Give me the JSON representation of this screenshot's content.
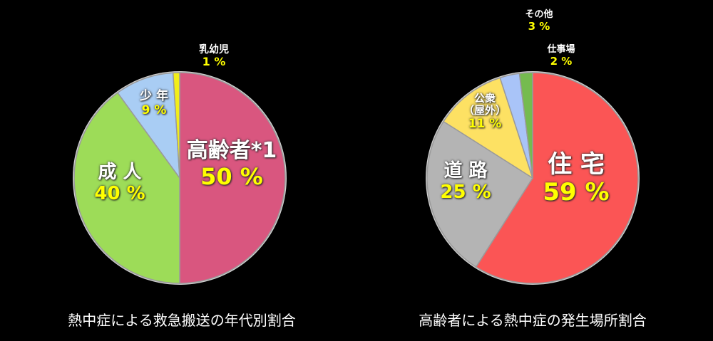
{
  "chart_data": [
    {
      "type": "pie",
      "title": "熱中症による救急搬送の年代別割合",
      "categories": [
        "高齢者*1",
        "成人",
        "少年",
        "乳幼児"
      ],
      "values": [
        50,
        40,
        9,
        1
      ],
      "colors": [
        "#d9567f",
        "#9ddc58",
        "#a9cdf4",
        "#f2ee1a"
      ],
      "start_angle_deg": 0,
      "direction": "clockwise",
      "labels": [
        {
          "name": "高齢者*1",
          "pct": "50 %"
        },
        {
          "name": "成 人",
          "pct": "40 %"
        },
        {
          "name": "少 年",
          "pct": "9 %"
        },
        {
          "name": "乳幼児",
          "pct": "1 %"
        }
      ]
    },
    {
      "type": "pie",
      "title": "高齢者による熱中症の発生場所割合",
      "categories": [
        "住宅",
        "道路",
        "公衆（屋外）",
        "その他",
        "仕事場"
      ],
      "values": [
        59,
        25,
        11,
        3,
        2
      ],
      "colors": [
        "#fb5555",
        "#b4b4b4",
        "#fde163",
        "#a9c4f8",
        "#75bb4f"
      ],
      "start_angle_deg": 0,
      "direction": "clockwise",
      "labels": [
        {
          "name": "住 宅",
          "pct": "59 %"
        },
        {
          "name": "道 路",
          "pct": "25 %"
        },
        {
          "name": "公衆\n（屋外）",
          "pct": "11 %"
        },
        {
          "name": "その他",
          "pct": "3 %"
        },
        {
          "name": "仕事場",
          "pct": "2 %"
        }
      ]
    }
  ],
  "left": {
    "caption": "熱中症による救急搬送の年代別割合",
    "labels": {
      "elderly": {
        "name": "高齢者*1",
        "pct": "50 %"
      },
      "adult": {
        "name": "成 人",
        "pct": "40 %"
      },
      "youth": {
        "name": "少 年",
        "pct": "9 %"
      },
      "infant": {
        "name": "乳幼児",
        "pct": "1 %"
      }
    }
  },
  "right": {
    "caption": "高齢者による熱中症の発生場所割合",
    "labels": {
      "home": {
        "name": "住 宅",
        "pct": "59 %"
      },
      "road": {
        "name": "道 路",
        "pct": "25 %"
      },
      "public_line1": "公衆",
      "public_line2": "（屋外）",
      "public_pct": "11 %",
      "other": {
        "name": "その他",
        "pct": "3 %"
      },
      "work": {
        "name": "仕事場",
        "pct": "2 %"
      }
    }
  }
}
